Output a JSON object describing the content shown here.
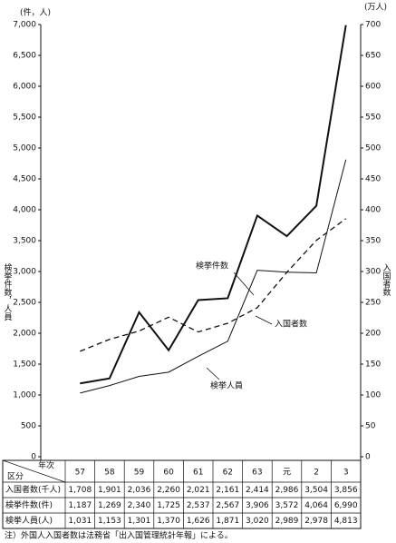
{
  "chart_data": {
    "type": "line",
    "y_unit": "(件，人)",
    "y2_unit": "(万人)",
    "ylabel": "検挙件数，人員",
    "y2label": "入国者数",
    "categories": [
      "57",
      "58",
      "59",
      "60",
      "61",
      "62",
      "63",
      "元",
      "2",
      "3"
    ],
    "ylim": [
      0,
      7000
    ],
    "yticks": [
      0,
      500,
      {
        "value": 1000,
        "label": "1,000"
      },
      {
        "value": 1500,
        "label": "1,500"
      },
      {
        "value": 2000,
        "label": "2,000"
      },
      {
        "value": 2500,
        "label": "2,500"
      },
      {
        "value": 3000,
        "label": "3,000"
      },
      {
        "value": 3500,
        "label": "3,500"
      },
      {
        "value": 4000,
        "label": "4,000"
      },
      {
        "value": 4500,
        "label": "4,500"
      },
      {
        "value": 5000,
        "label": "5,000"
      },
      {
        "value": 5500,
        "label": "5,500"
      },
      {
        "value": 6000,
        "label": "6,000"
      },
      {
        "value": 6500,
        "label": "6,500"
      },
      {
        "value": 7000,
        "label": "7,000"
      }
    ],
    "y2lim": [
      0,
      700
    ],
    "y2ticks": [
      0,
      50,
      100,
      150,
      200,
      250,
      300,
      350,
      400,
      450,
      500,
      550,
      600,
      650,
      700
    ],
    "series": [
      {
        "name": "入国者数(千人)",
        "color": "#111",
        "style": "dashed",
        "axis": "y2",
        "values": [
          170.8,
          190.1,
          203.6,
          226.0,
          202.1,
          216.1,
          241.4,
          298.6,
          350.4,
          385.6
        ],
        "value_labels": [
          "1,708",
          "1,901",
          "2,036",
          "2,260",
          "2,021",
          "2,161",
          "2,414",
          "2,986",
          "3,504",
          "3,856"
        ]
      },
      {
        "name": "検挙件数(件)",
        "color": "#111",
        "style": "thick",
        "values": [
          1187,
          1269,
          2340,
          1725,
          2537,
          2567,
          3906,
          3572,
          4064,
          6990
        ],
        "value_labels": [
          "1,187",
          "1,269",
          "2,340",
          "1,725",
          "2,537",
          "2,567",
          "3,906",
          "3,572",
          "4,064",
          "6,990"
        ]
      },
      {
        "name": "検挙人員(人)",
        "color": "#111",
        "style": "thin",
        "values": [
          1031,
          1153,
          1301,
          1370,
          1626,
          1871,
          3020,
          2989,
          2978,
          4813
        ],
        "value_labels": [
          "1,031",
          "1,153",
          "1,301",
          "1,370",
          "1,626",
          "1,871",
          "3,020",
          "2,989",
          "2,978",
          "4,813"
        ]
      }
    ],
    "annotations": [
      "検挙件数",
      "入国者数",
      "検挙人員"
    ],
    "table_corner": [
      "年次",
      "区分"
    ],
    "footnote": "注）外国人入国者数は法務省「出入国管理統計年報」による。"
  }
}
